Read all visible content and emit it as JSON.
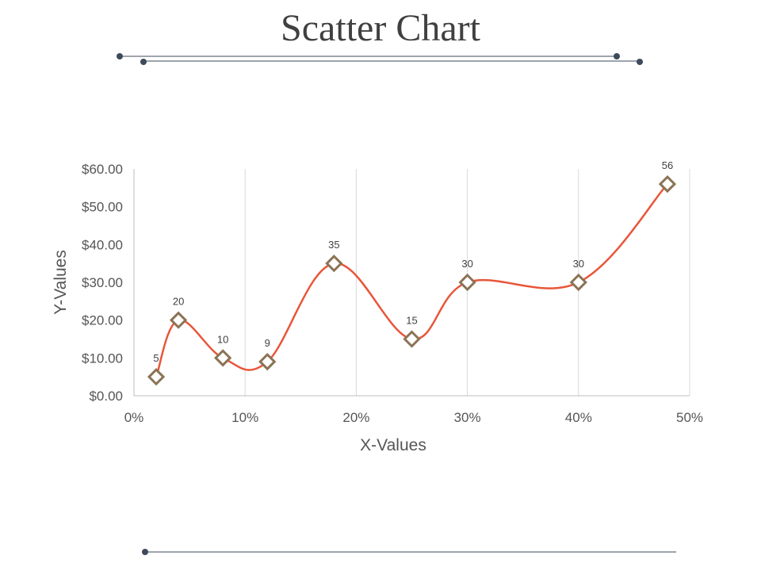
{
  "slide": {
    "title": "Scatter Chart"
  },
  "colors": {
    "line": "#E8563A",
    "marker_stroke": "#8B7355",
    "gridline": "#D9D9D9",
    "axis": "#BFBFBF",
    "decor": "#3E4A5A"
  },
  "chart_data": {
    "type": "scatter",
    "smooth_line": true,
    "marker": "diamond",
    "xlabel": "X-Values",
    "ylabel": "Y-Values",
    "xlim": [
      0,
      0.5
    ],
    "ylim": [
      0,
      60
    ],
    "x_ticks": [
      {
        "value": 0,
        "label": "0%"
      },
      {
        "value": 0.1,
        "label": "10%"
      },
      {
        "value": 0.2,
        "label": "20%"
      },
      {
        "value": 0.3,
        "label": "30%"
      },
      {
        "value": 0.4,
        "label": "40%"
      },
      {
        "value": 0.5,
        "label": "50%"
      }
    ],
    "y_ticks": [
      {
        "value": 0,
        "label": "$0.00"
      },
      {
        "value": 10,
        "label": "$10.00"
      },
      {
        "value": 20,
        "label": "$20.00"
      },
      {
        "value": 30,
        "label": "$30.00"
      },
      {
        "value": 40,
        "label": "$40.00"
      },
      {
        "value": 50,
        "label": "$50.00"
      },
      {
        "value": 60,
        "label": "$60.00"
      }
    ],
    "vertical_gridlines": true,
    "horizontal_gridlines": false,
    "series": [
      {
        "x": [
          0.02,
          0.04,
          0.08,
          0.12,
          0.18,
          0.25,
          0.3,
          0.4,
          0.48
        ],
        "y": [
          5,
          20,
          10,
          9,
          35,
          15,
          30,
          30,
          56
        ],
        "data_labels": [
          "5",
          "20",
          "10",
          "9",
          "35",
          "15",
          "30",
          "30",
          "56"
        ]
      }
    ]
  }
}
